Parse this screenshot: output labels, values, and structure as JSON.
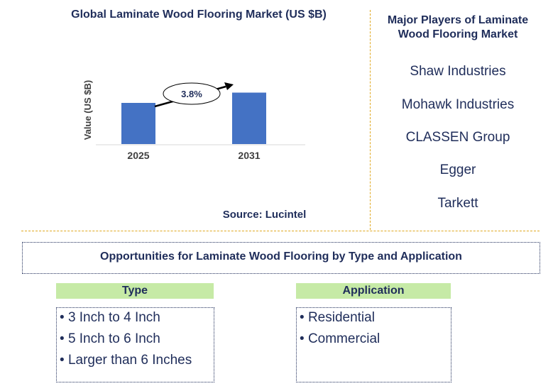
{
  "chart_data": {
    "type": "bar",
    "title": "Global Laminate Wood Flooring Market (US $B)",
    "ylabel": "Value (US $B)",
    "categories": [
      "2025",
      "2031"
    ],
    "values": [
      1.0,
      1.25
    ],
    "annotation": "3.8%",
    "bar_color": "#4472c4"
  },
  "source": "Source: Lucintel",
  "players": {
    "title": "Major Players of Laminate Wood Flooring Market",
    "items": [
      "Shaw Industries",
      "Mohawk Industries",
      "CLASSEN Group",
      "Egger",
      "Tarkett"
    ]
  },
  "opportunities": {
    "title": "Opportunities for Laminate Wood Flooring by Type and Application",
    "type": {
      "header": "Type",
      "items": [
        "3 Inch to 4 Inch",
        "5 Inch to 6 Inch",
        "Larger than 6 Inches"
      ]
    },
    "application": {
      "header": "Application",
      "items": [
        "Residential",
        "Commercial"
      ]
    }
  },
  "colors": {
    "text": "#1f2d5a",
    "divider": "#e0a820",
    "header_bg": "#c6eaa6"
  }
}
